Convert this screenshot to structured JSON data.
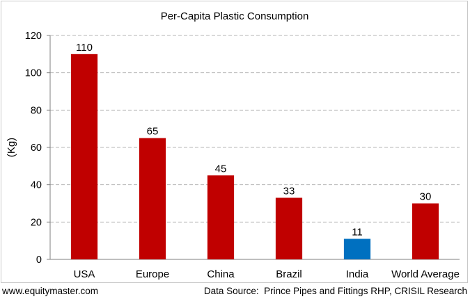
{
  "chart_data": {
    "type": "bar",
    "title": "Per-Capita Plastic Consumption",
    "ylabel": "(Kg)",
    "xlabel": "",
    "categories": [
      "USA",
      "Europe",
      "China",
      "Brazil",
      "India",
      "World Average"
    ],
    "values": [
      110,
      65,
      45,
      33,
      11,
      30
    ],
    "bar_colors": [
      "#c00000",
      "#c00000",
      "#c00000",
      "#c00000",
      "#0070c0",
      "#c00000"
    ],
    "ylim": [
      0,
      120
    ],
    "yticks": [
      0,
      20,
      40,
      60,
      80,
      100,
      120
    ],
    "grid": true,
    "data_labels": true
  },
  "footer": {
    "website": "www.equitymaster.com",
    "source": "Data Source:  Prince Pipes and Fittings RHP, CRISIL Research"
  }
}
